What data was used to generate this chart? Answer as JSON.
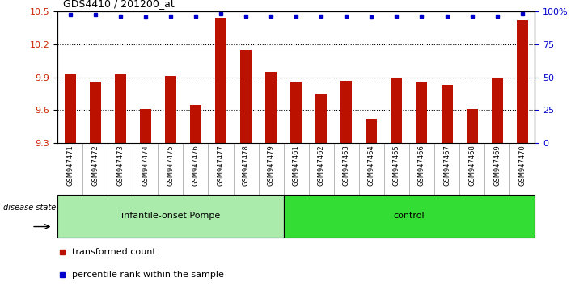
{
  "title": "GDS4410 / 201200_at",
  "samples": [
    "GSM947471",
    "GSM947472",
    "GSM947473",
    "GSM947474",
    "GSM947475",
    "GSM947476",
    "GSM947477",
    "GSM947478",
    "GSM947479",
    "GSM947461",
    "GSM947462",
    "GSM947463",
    "GSM947464",
    "GSM947465",
    "GSM947466",
    "GSM947467",
    "GSM947468",
    "GSM947469",
    "GSM947470"
  ],
  "bar_values": [
    9.93,
    9.86,
    9.93,
    9.61,
    9.91,
    9.65,
    10.44,
    10.15,
    9.95,
    9.86,
    9.75,
    9.87,
    9.52,
    9.9,
    9.86,
    9.83,
    9.61,
    9.9,
    10.42
  ],
  "blue_dot_values": [
    10.47,
    10.47,
    10.46,
    10.45,
    10.46,
    10.46,
    10.48,
    10.46,
    10.46,
    10.46,
    10.46,
    10.46,
    10.45,
    10.46,
    10.46,
    10.46,
    10.46,
    10.46,
    10.48
  ],
  "groups": [
    {
      "label": "infantile-onset Pompe",
      "start": 0,
      "end": 9,
      "color": "#aaeaaa"
    },
    {
      "label": "control",
      "start": 9,
      "end": 19,
      "color": "#33dd33"
    }
  ],
  "bar_color": "#bb1100",
  "dot_color": "#0000cc",
  "ylim_left": [
    9.3,
    10.5
  ],
  "ylim_right": [
    0,
    100
  ],
  "yticks_left": [
    9.3,
    9.6,
    9.9,
    10.2,
    10.5
  ],
  "ytick_labels_left": [
    "9.3",
    "9.6",
    "9.9",
    "10.2",
    "10.5"
  ],
  "yticks_right": [
    0,
    25,
    50,
    75,
    100
  ],
  "ytick_labels_right": [
    "0",
    "25",
    "50",
    "75",
    "100%"
  ],
  "hline_positions": [
    9.6,
    9.9,
    10.2
  ],
  "disease_state_label": "disease state",
  "legend_items": [
    {
      "label": "transformed count",
      "color": "#bb1100"
    },
    {
      "label": "percentile rank within the sample",
      "color": "#0000cc"
    }
  ],
  "tick_label_color_left": "#cc2200",
  "tick_label_color_right": "#0000cc",
  "background_color": "#ffffff",
  "sample_bg_color": "#cccccc"
}
